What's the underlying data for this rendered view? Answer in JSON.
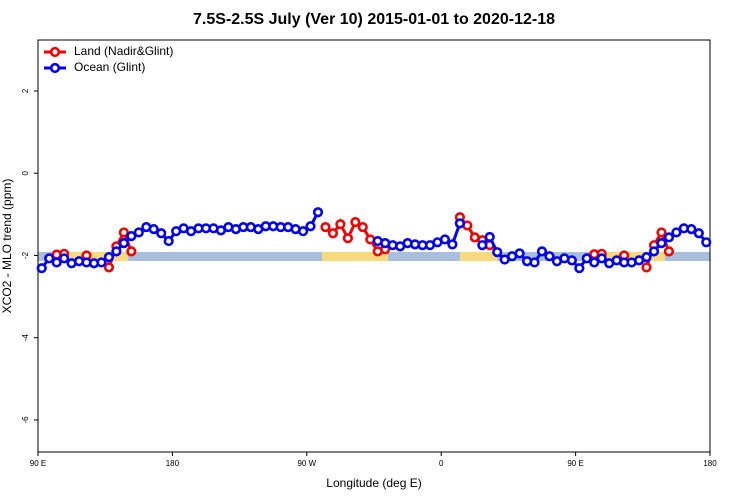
{
  "chart_data": {
    "type": "line",
    "title": "7.5S-2.5S July (Ver 10)   2015-01-01 to 2020-12-18",
    "x_label": "Longitude (deg E)",
    "y_label": "XCO2 - MLO trend (ppm)",
    "xlim": [
      90,
      540
    ],
    "xticks": [
      {
        "value": 90,
        "label": "90 E"
      },
      {
        "value": 180,
        "label": "180"
      },
      {
        "value": 270,
        "label": "90 W"
      },
      {
        "value": 360,
        "label": "0"
      },
      {
        "value": 450,
        "label": "90 E"
      },
      {
        "value": 540,
        "label": "180"
      }
    ],
    "ylim": [
      -6.78,
      3.24
    ],
    "yticks": [
      -6,
      -4,
      -2,
      0,
      2
    ],
    "legend": "top-left",
    "x": [
      92.5,
      97.5,
      102.5,
      107.5,
      112.5,
      117.5,
      122.5,
      127.5,
      132.5,
      137.5,
      142.5,
      147.5,
      152.5,
      157.5,
      162.5,
      167.5,
      172.5,
      177.5,
      182.5,
      187.5,
      192.5,
      197.5,
      202.5,
      207.5,
      212.5,
      217.5,
      222.5,
      227.5,
      232.5,
      237.5,
      242.5,
      247.5,
      252.5,
      257.5,
      262.5,
      267.5,
      272.5,
      277.5,
      282.5,
      287.5,
      292.5,
      297.5,
      302.5,
      307.5,
      312.5,
      317.5,
      322.5,
      327.5,
      332.5,
      337.5,
      342.5,
      347.5,
      352.5,
      357.5,
      362.5,
      367.5,
      372.5,
      377.5,
      382.5,
      387.5,
      392.5,
      397.5,
      402.5,
      407.5,
      412.5,
      417.5,
      422.5,
      427.5,
      432.5,
      437.5,
      442.5,
      447.5,
      452.5,
      457.5,
      462.5,
      467.5,
      472.5,
      477.5,
      482.5,
      487.5,
      492.5,
      497.5,
      502.5,
      507.5,
      512.5,
      517.5,
      522.5,
      527.5,
      532.5,
      537.5
    ],
    "series": [
      {
        "name": "Land (Nadir&Glint)",
        "color": "#ee0000",
        "values": [
          null,
          null,
          -1.98,
          -1.96,
          null,
          null,
          -2.0,
          null,
          null,
          -2.29,
          -1.78,
          -1.44,
          -1.9,
          null,
          null,
          null,
          null,
          null,
          null,
          null,
          null,
          null,
          null,
          null,
          null,
          null,
          null,
          null,
          null,
          null,
          null,
          null,
          null,
          null,
          null,
          null,
          null,
          null,
          -1.31,
          -1.46,
          -1.24,
          -1.58,
          -1.19,
          -1.31,
          -1.61,
          -1.9,
          -1.85,
          null,
          null,
          null,
          null,
          null,
          null,
          null,
          null,
          null,
          -1.07,
          -1.27,
          -1.56,
          -1.63,
          -1.75,
          null,
          null,
          null,
          null,
          null,
          null,
          null,
          null,
          null,
          null,
          null,
          null,
          null,
          -1.97,
          -1.96,
          null,
          null,
          -2.0,
          null,
          null,
          -2.29,
          -1.75,
          -1.44,
          -1.9,
          null,
          null,
          null,
          null,
          null
        ]
      },
      {
        "name": "Ocean (Glint)",
        "color": "#0000ee",
        "values": [
          -2.31,
          -2.07,
          -2.17,
          -2.07,
          -2.19,
          -2.14,
          -2.17,
          -2.19,
          -2.17,
          -2.04,
          -1.9,
          -1.7,
          -1.53,
          -1.44,
          -1.31,
          -1.36,
          -1.46,
          -1.65,
          -1.41,
          -1.34,
          -1.41,
          -1.34,
          -1.34,
          -1.34,
          -1.39,
          -1.31,
          -1.36,
          -1.31,
          -1.31,
          -1.36,
          -1.29,
          -1.29,
          -1.31,
          -1.31,
          -1.36,
          -1.41,
          -1.29,
          -0.95,
          null,
          null,
          null,
          null,
          null,
          null,
          null,
          -1.65,
          -1.7,
          -1.75,
          -1.78,
          -1.7,
          -1.73,
          -1.75,
          -1.75,
          -1.68,
          -1.61,
          -1.73,
          -1.22,
          null,
          null,
          -1.75,
          -1.55,
          -1.92,
          -2.1,
          -2.02,
          -1.95,
          -2.14,
          -2.17,
          -1.9,
          -2.02,
          -2.14,
          -2.07,
          -2.12,
          -2.31,
          -2.07,
          -2.17,
          -2.07,
          -2.19,
          -2.12,
          -2.17,
          -2.17,
          -2.12,
          -2.04,
          -1.9,
          -1.7,
          -1.56,
          -1.44,
          -1.34,
          -1.36,
          -1.46,
          -1.68
        ]
      }
    ]
  }
}
